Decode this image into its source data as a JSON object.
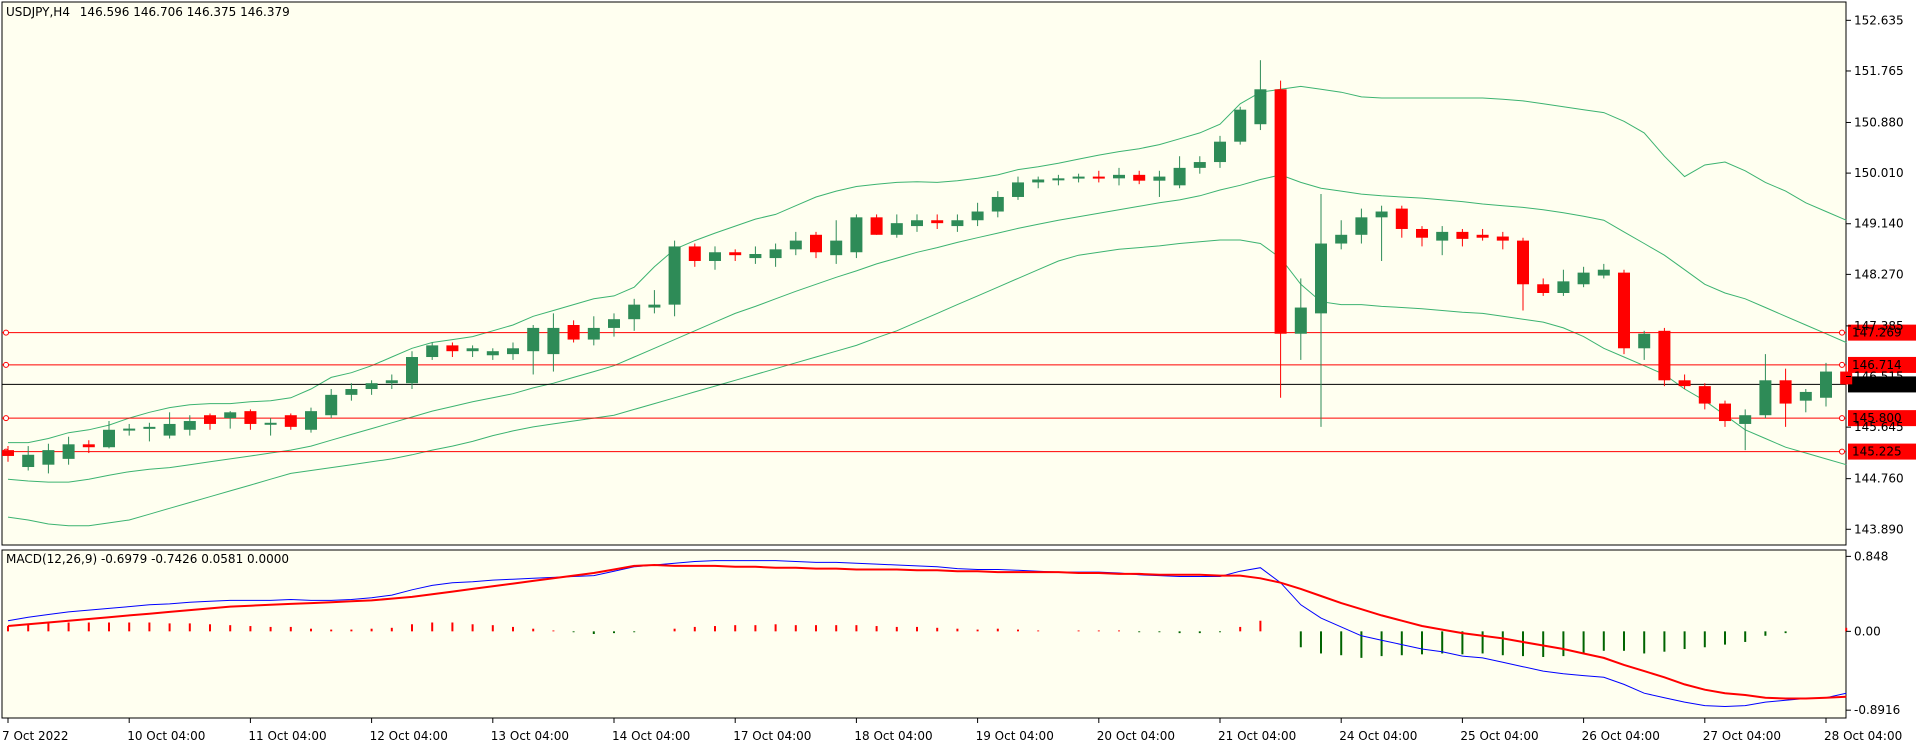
{
  "chart_data": {
    "type": "candlestick",
    "symbol_label": "USDJPY,H4",
    "ohlc_text": "146.596 146.706 146.375 146.379",
    "current_price": 146.379,
    "current_price_label": "146.379",
    "price_axis": {
      "range": [
        143.62,
        152.95
      ],
      "ticks": [
        143.89,
        144.76,
        145.645,
        146.515,
        147.385,
        148.27,
        149.14,
        150.01,
        150.88,
        151.765,
        152.635
      ],
      "tick_labels": [
        "143.890",
        "144.760",
        "145.645",
        "146.515",
        "147.385",
        "148.270",
        "149.140",
        "150.010",
        "150.880",
        "151.765",
        "152.635"
      ]
    },
    "horizontal_levels": [
      {
        "value": 147.269,
        "label": "147.269"
      },
      {
        "value": 146.714,
        "label": "146.714"
      },
      {
        "value": 145.8,
        "label": "145.800"
      },
      {
        "value": 145.225,
        "label": "145.225"
      }
    ],
    "time_axis": {
      "labels": [
        "7 Oct 2022",
        "10 Oct 04:00",
        "11 Oct 04:00",
        "12 Oct 04:00",
        "13 Oct 04:00",
        "14 Oct 04:00",
        "17 Oct 04:00",
        "18 Oct 04:00",
        "19 Oct 04:00",
        "20 Oct 04:00",
        "21 Oct 04:00",
        "24 Oct 04:00",
        "25 Oct 04:00",
        "26 Oct 04:00",
        "27 Oct 04:00",
        "28 Oct 04:00"
      ],
      "label_bar_index": [
        0,
        6,
        12,
        18,
        24,
        30,
        36,
        42,
        48,
        54,
        60,
        66,
        72,
        78,
        84,
        90
      ]
    },
    "candles": [
      {
        "o": 145.25,
        "h": 145.32,
        "l": 145.05,
        "c": 145.15
      },
      {
        "o": 144.96,
        "h": 145.32,
        "l": 144.9,
        "c": 145.17
      },
      {
        "o": 145.0,
        "h": 145.36,
        "l": 144.85,
        "c": 145.25
      },
      {
        "o": 145.1,
        "h": 145.48,
        "l": 145.0,
        "c": 145.35
      },
      {
        "o": 145.35,
        "h": 145.42,
        "l": 145.2,
        "c": 145.3
      },
      {
        "o": 145.3,
        "h": 145.75,
        "l": 145.28,
        "c": 145.6
      },
      {
        "o": 145.6,
        "h": 145.7,
        "l": 145.5,
        "c": 145.62
      },
      {
        "o": 145.62,
        "h": 145.72,
        "l": 145.4,
        "c": 145.65
      },
      {
        "o": 145.5,
        "h": 145.9,
        "l": 145.45,
        "c": 145.7
      },
      {
        "o": 145.6,
        "h": 145.85,
        "l": 145.5,
        "c": 145.75
      },
      {
        "o": 145.85,
        "h": 145.88,
        "l": 145.6,
        "c": 145.7
      },
      {
        "o": 145.8,
        "h": 145.92,
        "l": 145.62,
        "c": 145.9
      },
      {
        "o": 145.92,
        "h": 145.95,
        "l": 145.6,
        "c": 145.7
      },
      {
        "o": 145.7,
        "h": 145.8,
        "l": 145.5,
        "c": 145.72
      },
      {
        "o": 145.85,
        "h": 145.88,
        "l": 145.6,
        "c": 145.65
      },
      {
        "o": 145.6,
        "h": 145.98,
        "l": 145.55,
        "c": 145.92
      },
      {
        "o": 145.85,
        "h": 146.3,
        "l": 145.8,
        "c": 146.2
      },
      {
        "o": 146.2,
        "h": 146.4,
        "l": 146.1,
        "c": 146.3
      },
      {
        "o": 146.3,
        "h": 146.45,
        "l": 146.2,
        "c": 146.4
      },
      {
        "o": 146.4,
        "h": 146.55,
        "l": 146.3,
        "c": 146.45
      },
      {
        "o": 146.4,
        "h": 146.95,
        "l": 146.3,
        "c": 146.85
      },
      {
        "o": 146.85,
        "h": 147.1,
        "l": 146.8,
        "c": 147.05
      },
      {
        "o": 147.05,
        "h": 147.1,
        "l": 146.85,
        "c": 146.95
      },
      {
        "o": 146.95,
        "h": 147.05,
        "l": 146.85,
        "c": 147.0
      },
      {
        "o": 146.88,
        "h": 147.0,
        "l": 146.8,
        "c": 146.95
      },
      {
        "o": 146.9,
        "h": 147.1,
        "l": 146.8,
        "c": 147.0
      },
      {
        "o": 146.95,
        "h": 147.4,
        "l": 146.55,
        "c": 147.35
      },
      {
        "o": 146.9,
        "h": 147.6,
        "l": 146.6,
        "c": 147.35
      },
      {
        "o": 147.4,
        "h": 147.48,
        "l": 147.1,
        "c": 147.15
      },
      {
        "o": 147.15,
        "h": 147.55,
        "l": 147.05,
        "c": 147.35
      },
      {
        "o": 147.35,
        "h": 147.6,
        "l": 147.2,
        "c": 147.5
      },
      {
        "o": 147.5,
        "h": 147.85,
        "l": 147.3,
        "c": 147.75
      },
      {
        "o": 147.7,
        "h": 148.0,
        "l": 147.6,
        "c": 147.75
      },
      {
        "o": 147.75,
        "h": 148.85,
        "l": 147.55,
        "c": 148.75
      },
      {
        "o": 148.75,
        "h": 148.8,
        "l": 148.4,
        "c": 148.5
      },
      {
        "o": 148.5,
        "h": 148.75,
        "l": 148.35,
        "c": 148.65
      },
      {
        "o": 148.65,
        "h": 148.7,
        "l": 148.5,
        "c": 148.6
      },
      {
        "o": 148.55,
        "h": 148.75,
        "l": 148.45,
        "c": 148.62
      },
      {
        "o": 148.55,
        "h": 148.8,
        "l": 148.4,
        "c": 148.7
      },
      {
        "o": 148.7,
        "h": 149.0,
        "l": 148.6,
        "c": 148.85
      },
      {
        "o": 148.95,
        "h": 149.0,
        "l": 148.55,
        "c": 148.65
      },
      {
        "o": 148.6,
        "h": 149.2,
        "l": 148.45,
        "c": 148.85
      },
      {
        "o": 148.65,
        "h": 149.3,
        "l": 148.55,
        "c": 149.25
      },
      {
        "o": 149.25,
        "h": 149.3,
        "l": 148.95,
        "c": 148.95
      },
      {
        "o": 148.95,
        "h": 149.3,
        "l": 148.9,
        "c": 149.15
      },
      {
        "o": 149.1,
        "h": 149.3,
        "l": 149.0,
        "c": 149.2
      },
      {
        "o": 149.2,
        "h": 149.3,
        "l": 149.05,
        "c": 149.15
      },
      {
        "o": 149.1,
        "h": 149.3,
        "l": 149.0,
        "c": 149.2
      },
      {
        "o": 149.2,
        "h": 149.5,
        "l": 149.1,
        "c": 149.35
      },
      {
        "o": 149.35,
        "h": 149.7,
        "l": 149.25,
        "c": 149.6
      },
      {
        "o": 149.6,
        "h": 149.95,
        "l": 149.55,
        "c": 149.85
      },
      {
        "o": 149.85,
        "h": 149.95,
        "l": 149.75,
        "c": 149.9
      },
      {
        "o": 149.9,
        "h": 149.98,
        "l": 149.8,
        "c": 149.92
      },
      {
        "o": 149.92,
        "h": 150.0,
        "l": 149.85,
        "c": 149.95
      },
      {
        "o": 149.95,
        "h": 150.05,
        "l": 149.85,
        "c": 149.92
      },
      {
        "o": 149.92,
        "h": 150.1,
        "l": 149.8,
        "c": 149.98
      },
      {
        "o": 149.98,
        "h": 150.05,
        "l": 149.82,
        "c": 149.88
      },
      {
        "o": 149.88,
        "h": 150.05,
        "l": 149.6,
        "c": 149.95
      },
      {
        "o": 149.8,
        "h": 150.3,
        "l": 149.75,
        "c": 150.1
      },
      {
        "o": 150.1,
        "h": 150.3,
        "l": 150.0,
        "c": 150.2
      },
      {
        "o": 150.2,
        "h": 150.65,
        "l": 150.1,
        "c": 150.55
      },
      {
        "o": 150.55,
        "h": 151.15,
        "l": 150.5,
        "c": 151.1
      },
      {
        "o": 150.85,
        "h": 151.95,
        "l": 150.75,
        "c": 151.45
      },
      {
        "o": 151.45,
        "h": 151.6,
        "l": 146.15,
        "c": 147.25
      },
      {
        "o": 147.25,
        "h": 148.2,
        "l": 146.8,
        "c": 147.7
      },
      {
        "o": 147.6,
        "h": 149.65,
        "l": 145.65,
        "c": 148.8
      },
      {
        "o": 148.8,
        "h": 149.2,
        "l": 148.7,
        "c": 148.95
      },
      {
        "o": 148.95,
        "h": 149.4,
        "l": 148.8,
        "c": 149.25
      },
      {
        "o": 149.25,
        "h": 149.45,
        "l": 148.5,
        "c": 149.35
      },
      {
        "o": 149.4,
        "h": 149.45,
        "l": 148.9,
        "c": 149.05
      },
      {
        "o": 149.05,
        "h": 149.1,
        "l": 148.75,
        "c": 148.9
      },
      {
        "o": 148.85,
        "h": 149.1,
        "l": 148.6,
        "c": 149.0
      },
      {
        "o": 149.0,
        "h": 149.05,
        "l": 148.75,
        "c": 148.88
      },
      {
        "o": 148.95,
        "h": 149.05,
        "l": 148.85,
        "c": 148.9
      },
      {
        "o": 148.92,
        "h": 149.0,
        "l": 148.7,
        "c": 148.85
      },
      {
        "o": 148.85,
        "h": 148.9,
        "l": 147.65,
        "c": 148.1
      },
      {
        "o": 148.1,
        "h": 148.2,
        "l": 147.9,
        "c": 147.95
      },
      {
        "o": 147.95,
        "h": 148.35,
        "l": 147.9,
        "c": 148.15
      },
      {
        "o": 148.1,
        "h": 148.4,
        "l": 148.05,
        "c": 148.3
      },
      {
        "o": 148.25,
        "h": 148.45,
        "l": 148.2,
        "c": 148.35
      },
      {
        "o": 148.3,
        "h": 148.35,
        "l": 146.9,
        "c": 147.0
      },
      {
        "o": 147.0,
        "h": 147.3,
        "l": 146.8,
        "c": 147.25
      },
      {
        "o": 147.3,
        "h": 147.35,
        "l": 146.35,
        "c": 146.45
      },
      {
        "o": 146.45,
        "h": 146.55,
        "l": 146.3,
        "c": 146.35
      },
      {
        "o": 146.35,
        "h": 146.4,
        "l": 145.95,
        "c": 146.05
      },
      {
        "o": 146.05,
        "h": 146.1,
        "l": 145.65,
        "c": 145.75
      },
      {
        "o": 145.7,
        "h": 145.95,
        "l": 145.25,
        "c": 145.85
      },
      {
        "o": 145.85,
        "h": 146.9,
        "l": 145.8,
        "c": 146.45
      },
      {
        "o": 146.45,
        "h": 146.65,
        "l": 145.65,
        "c": 146.05
      },
      {
        "o": 146.1,
        "h": 146.3,
        "l": 145.9,
        "c": 146.25
      },
      {
        "o": 146.15,
        "h": 146.75,
        "l": 146.0,
        "c": 146.6
      },
      {
        "o": 146.6,
        "h": 146.71,
        "l": 146.37,
        "c": 146.38
      }
    ],
    "bollinger": {
      "upper": [
        145.38,
        145.38,
        145.45,
        145.55,
        145.6,
        145.68,
        145.8,
        145.9,
        145.98,
        146.03,
        146.05,
        146.05,
        146.08,
        146.1,
        146.15,
        146.3,
        146.5,
        146.58,
        146.7,
        146.85,
        147.0,
        147.1,
        147.15,
        147.2,
        147.3,
        147.4,
        147.55,
        147.65,
        147.75,
        147.85,
        147.9,
        148.05,
        148.4,
        148.7,
        148.85,
        148.98,
        149.1,
        149.22,
        149.3,
        149.45,
        149.6,
        149.7,
        149.78,
        149.82,
        149.85,
        149.86,
        149.85,
        149.88,
        149.92,
        149.98,
        150.07,
        150.12,
        150.18,
        150.25,
        150.32,
        150.38,
        150.43,
        150.5,
        150.6,
        150.7,
        150.85,
        151.2,
        151.4,
        151.45,
        151.5,
        151.45,
        151.4,
        151.32,
        151.3,
        151.3,
        151.3,
        151.3,
        151.3,
        151.3,
        151.28,
        151.25,
        151.2,
        151.15,
        151.1,
        151.05,
        150.9,
        150.7,
        150.3,
        149.95,
        150.15,
        150.2,
        150.05,
        149.85,
        149.7,
        149.5,
        149.35,
        149.2
      ],
      "middle": [
        144.75,
        144.72,
        144.7,
        144.7,
        144.75,
        144.82,
        144.88,
        144.92,
        144.95,
        145.0,
        145.05,
        145.1,
        145.15,
        145.2,
        145.25,
        145.32,
        145.42,
        145.52,
        145.62,
        145.72,
        145.82,
        145.92,
        146.0,
        146.08,
        146.15,
        146.22,
        146.32,
        146.4,
        146.5,
        146.6,
        146.7,
        146.85,
        147.0,
        147.15,
        147.3,
        147.45,
        147.6,
        147.72,
        147.85,
        147.98,
        148.1,
        148.22,
        148.33,
        148.45,
        148.55,
        148.65,
        148.73,
        148.82,
        148.9,
        148.98,
        149.06,
        149.13,
        149.2,
        149.26,
        149.32,
        149.38,
        149.44,
        149.5,
        149.55,
        149.62,
        149.72,
        149.8,
        149.9,
        149.98,
        149.85,
        149.75,
        149.7,
        149.65,
        149.62,
        149.6,
        149.58,
        149.55,
        149.52,
        149.48,
        149.45,
        149.42,
        149.38,
        149.33,
        149.27,
        149.2,
        149.0,
        148.8,
        148.6,
        148.35,
        148.1,
        147.95,
        147.85,
        147.7,
        147.55,
        147.4,
        147.25,
        147.1
      ],
      "lower": [
        144.1,
        144.05,
        143.98,
        143.95,
        143.95,
        144.0,
        144.05,
        144.15,
        144.25,
        144.35,
        144.45,
        144.55,
        144.65,
        144.75,
        144.85,
        144.9,
        144.95,
        145.0,
        145.05,
        145.1,
        145.17,
        145.25,
        145.32,
        145.4,
        145.5,
        145.58,
        145.65,
        145.7,
        145.75,
        145.8,
        145.85,
        145.95,
        146.05,
        146.15,
        146.25,
        146.35,
        146.45,
        146.55,
        146.65,
        146.75,
        146.85,
        146.95,
        147.05,
        147.18,
        147.3,
        147.45,
        147.6,
        147.75,
        147.9,
        148.05,
        148.2,
        148.35,
        148.5,
        148.6,
        148.65,
        148.7,
        148.73,
        148.76,
        148.8,
        148.83,
        148.86,
        148.86,
        148.8,
        148.55,
        148.1,
        147.8,
        147.75,
        147.75,
        147.72,
        147.7,
        147.68,
        147.65,
        147.62,
        147.6,
        147.55,
        147.5,
        147.45,
        147.35,
        147.2,
        147.0,
        146.85,
        146.7,
        146.55,
        146.3,
        146.1,
        145.85,
        145.6,
        145.45,
        145.3,
        145.2,
        145.1,
        145.0
      ]
    },
    "macd": {
      "label": "MACD(12,26,9) -0.6979 -0.7426 0.0581 0.0000",
      "range": [
        -0.98,
        0.92
      ],
      "ticks": [
        0.848,
        0.0,
        -0.8916
      ],
      "tick_labels": [
        "0.848",
        "0.00",
        "-0.8916"
      ],
      "macd_line": [
        0.12,
        0.16,
        0.19,
        0.22,
        0.24,
        0.26,
        0.28,
        0.3,
        0.31,
        0.33,
        0.34,
        0.35,
        0.35,
        0.35,
        0.36,
        0.35,
        0.35,
        0.36,
        0.38,
        0.41,
        0.47,
        0.52,
        0.55,
        0.56,
        0.58,
        0.59,
        0.6,
        0.61,
        0.62,
        0.63,
        0.68,
        0.73,
        0.75,
        0.77,
        0.79,
        0.8,
        0.8,
        0.8,
        0.8,
        0.79,
        0.78,
        0.78,
        0.77,
        0.76,
        0.75,
        0.74,
        0.73,
        0.71,
        0.7,
        0.7,
        0.69,
        0.68,
        0.67,
        0.67,
        0.67,
        0.66,
        0.64,
        0.63,
        0.62,
        0.62,
        0.62,
        0.68,
        0.72,
        0.55,
        0.3,
        0.15,
        0.05,
        -0.05,
        -0.1,
        -0.15,
        -0.2,
        -0.23,
        -0.28,
        -0.3,
        -0.35,
        -0.4,
        -0.45,
        -0.48,
        -0.5,
        -0.52,
        -0.6,
        -0.7,
        -0.75,
        -0.8,
        -0.84,
        -0.85,
        -0.84,
        -0.8,
        -0.78,
        -0.76,
        -0.75,
        -0.7
      ],
      "signal_line": [
        0.06,
        0.08,
        0.1,
        0.12,
        0.14,
        0.16,
        0.18,
        0.2,
        0.22,
        0.24,
        0.26,
        0.28,
        0.29,
        0.3,
        0.31,
        0.32,
        0.33,
        0.34,
        0.35,
        0.37,
        0.39,
        0.42,
        0.45,
        0.48,
        0.51,
        0.54,
        0.57,
        0.6,
        0.63,
        0.66,
        0.7,
        0.74,
        0.75,
        0.74,
        0.74,
        0.74,
        0.73,
        0.73,
        0.72,
        0.72,
        0.71,
        0.71,
        0.7,
        0.7,
        0.7,
        0.69,
        0.69,
        0.68,
        0.68,
        0.67,
        0.67,
        0.67,
        0.67,
        0.66,
        0.66,
        0.65,
        0.65,
        0.64,
        0.64,
        0.64,
        0.63,
        0.63,
        0.6,
        0.55,
        0.48,
        0.4,
        0.32,
        0.25,
        0.18,
        0.12,
        0.06,
        0.02,
        -0.02,
        -0.05,
        -0.08,
        -0.12,
        -0.16,
        -0.2,
        -0.25,
        -0.3,
        -0.38,
        -0.45,
        -0.52,
        -0.6,
        -0.66,
        -0.7,
        -0.72,
        -0.75,
        -0.76,
        -0.76,
        -0.75,
        -0.74
      ],
      "histogram": [
        0.06,
        0.08,
        0.09,
        0.1,
        0.1,
        0.1,
        0.1,
        0.1,
        0.09,
        0.09,
        0.08,
        0.07,
        0.06,
        0.05,
        0.05,
        0.03,
        0.02,
        0.02,
        0.03,
        0.04,
        0.08,
        0.1,
        0.1,
        0.08,
        0.07,
        0.05,
        0.03,
        0.01,
        -0.01,
        -0.03,
        -0.02,
        -0.01,
        0.0,
        0.03,
        0.05,
        0.06,
        0.07,
        0.07,
        0.08,
        0.07,
        0.07,
        0.07,
        0.07,
        0.06,
        0.05,
        0.05,
        0.04,
        0.03,
        0.02,
        0.03,
        0.02,
        0.01,
        0.0,
        0.01,
        0.01,
        0.01,
        -0.01,
        -0.01,
        -0.02,
        -0.02,
        -0.01,
        0.05,
        0.12,
        0.0,
        -0.18,
        -0.25,
        -0.27,
        -0.3,
        -0.28,
        -0.27,
        -0.26,
        -0.25,
        -0.26,
        -0.25,
        -0.27,
        -0.28,
        -0.29,
        -0.28,
        -0.25,
        -0.22,
        -0.22,
        -0.25,
        -0.23,
        -0.2,
        -0.18,
        -0.15,
        -0.12,
        -0.05,
        -0.02,
        0.0,
        0.0,
        0.04
      ],
      "colors": {
        "macd": "#0000ff",
        "signal": "#ff0000",
        "hist_pos": "#ff0000",
        "hist_neg": "#006400"
      }
    },
    "colors": {
      "background": "#fffff0",
      "bull": "#2e8b57",
      "bear": "#ff0000",
      "bollinger": "#3cb371",
      "level": "#ff0000",
      "price_line": "#000000"
    }
  }
}
